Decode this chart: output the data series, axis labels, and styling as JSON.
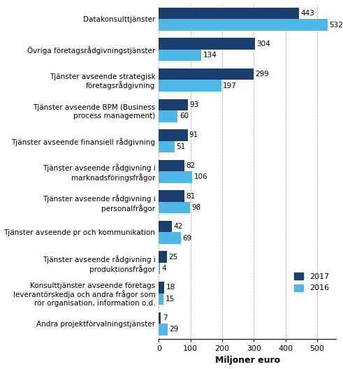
{
  "categories": [
    "Datakonsulttjänster",
    "Övriga företagsrådgivningstjänster",
    "Tjänster avseende strategisk\nföretagsrådgivning",
    "Tjänster avseende BPM (Business\nprocess management)",
    "Tjänster avseende finansiell rådgivning",
    "Tjänster avseende rådgivning i\nmarknadsföringsfrågor",
    "Tjänster avseende rådgivning i\npersonalfrågor",
    "Tjänster avseende pr och kommunikation",
    "Tjänster avseende rådgivning i\nproduktionsfrågor",
    "Konsulttjänster avseende företags\nleverantörskedja och andra frågor som\nrör organisation, information o.d.",
    "Andra projektförvalningstjänster"
  ],
  "values_2017": [
    443,
    304,
    299,
    93,
    91,
    82,
    81,
    42,
    25,
    18,
    7
  ],
  "values_2016": [
    532,
    134,
    197,
    60,
    51,
    106,
    98,
    69,
    4,
    15,
    29
  ],
  "color_2017": "#1a3f6f",
  "color_2016": "#4db8e8",
  "xlabel": "Miljoner euro",
  "legend_2017": "2017",
  "legend_2016": "2016",
  "xlim": [
    0,
    560
  ],
  "xticks": [
    0,
    100,
    200,
    300,
    400,
    500
  ],
  "background_color": "#ffffff",
  "grid_color": "#b0b0b0"
}
